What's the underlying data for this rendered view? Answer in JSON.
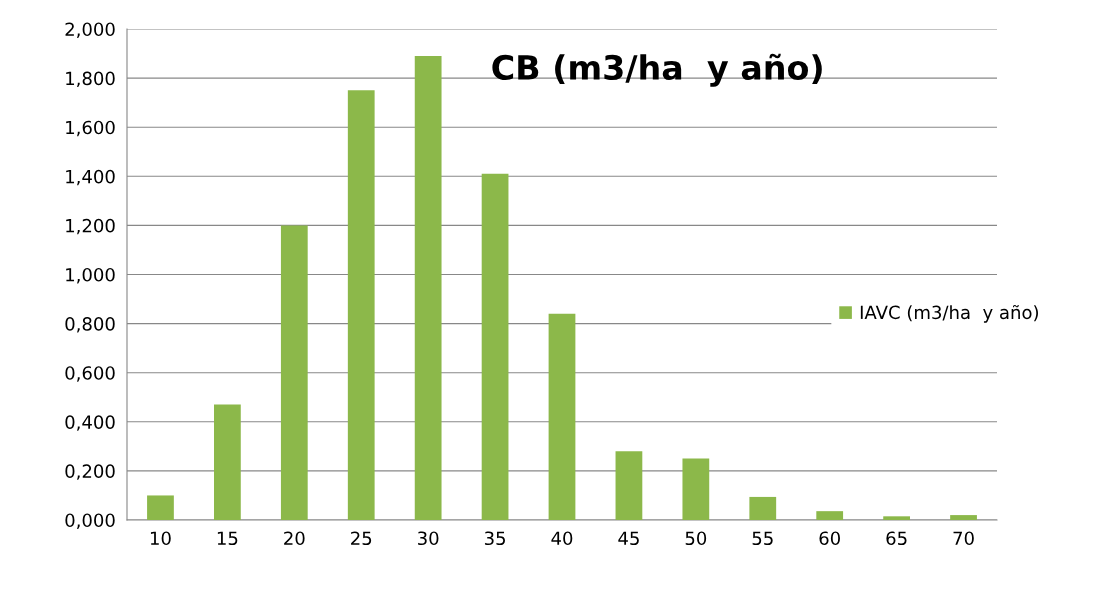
{
  "chart_data": {
    "type": "bar",
    "title": "CB (m3/ha  y año)",
    "categories": [
      "10",
      "15",
      "20",
      "25",
      "30",
      "35",
      "40",
      "45",
      "50",
      "55",
      "60",
      "65",
      "70"
    ],
    "series": [
      {
        "name": "IAVC (m3/ha  y año)",
        "color": "#8cb84a",
        "values": [
          0.1,
          0.47,
          1.2,
          1.75,
          1.89,
          1.41,
          0.84,
          0.28,
          0.25,
          0.094,
          0.036,
          0.015,
          0.02
        ]
      }
    ],
    "ylim": [
      0,
      2
    ],
    "yticks": [
      {
        "value": 0,
        "label": "0,000"
      },
      {
        "value": 0.2,
        "label": "0,200"
      },
      {
        "value": 0.4,
        "label": "0,400"
      },
      {
        "value": 0.6,
        "label": "0,600"
      },
      {
        "value": 0.8,
        "label": "0,800"
      },
      {
        "value": 1.0,
        "label": "1,000"
      },
      {
        "value": 1.2,
        "label": "1,200"
      },
      {
        "value": 1.4,
        "label": "1,400"
      },
      {
        "value": 1.6,
        "label": "1,600"
      },
      {
        "value": 1.8,
        "label": "1,800"
      },
      {
        "value": 2.0,
        "label": "2,000"
      }
    ],
    "grid": "y",
    "legend": "right"
  }
}
